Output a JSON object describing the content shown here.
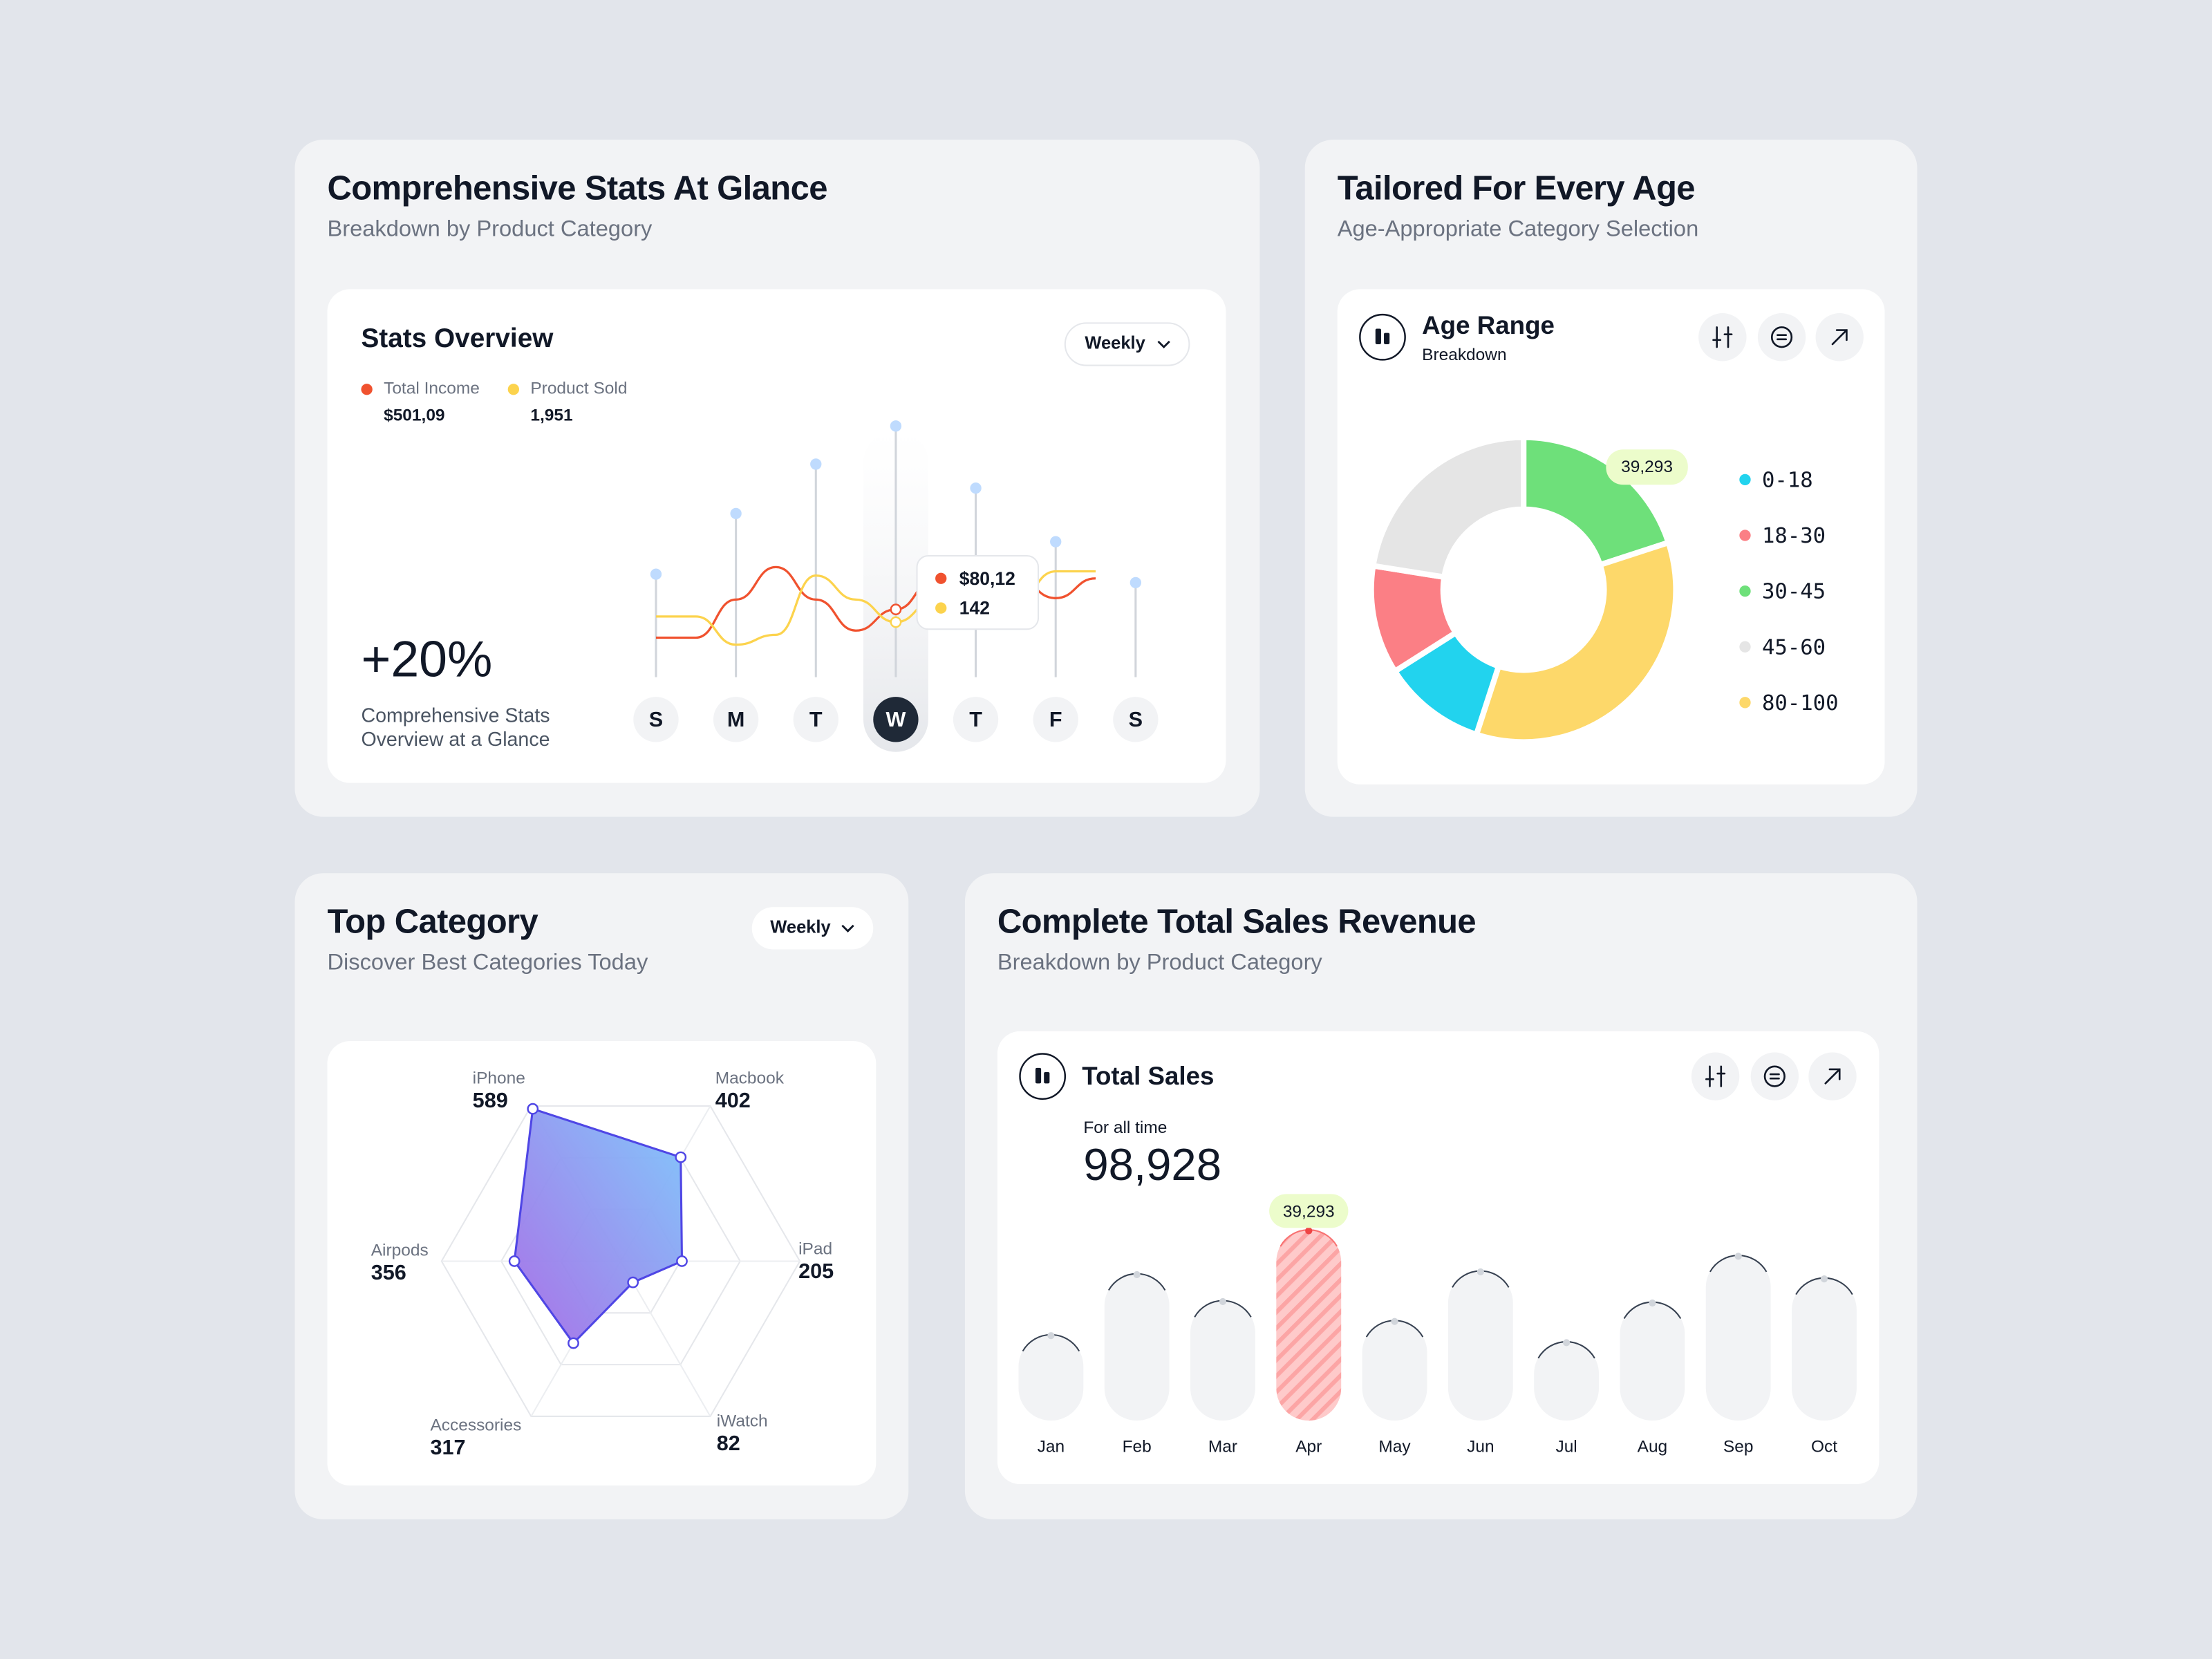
{
  "stats_card": {
    "title": "Comprehensive Stats At Glance",
    "subtitle": "Breakdown by Product Category",
    "chart_title": "Stats Overview",
    "dropdown": "Weekly",
    "change": "+20%",
    "caption_lines": [
      "Comprehensive Stats",
      "Overview at a Glance"
    ],
    "chart_data": {
      "type": "line",
      "categories": [
        "S",
        "M",
        "T",
        "W",
        "T",
        "F",
        "S"
      ],
      "highlight": 3,
      "bars": {
        "color": "#bfdbfe",
        "values": [
          73,
          116,
          151,
          178,
          134,
          96,
          67
        ]
      },
      "x": [
        0,
        0.5,
        1,
        1.5,
        2,
        2.5,
        3,
        3.5,
        4,
        4.5,
        5,
        5.5
      ],
      "xlim": [
        0,
        6
      ],
      "ylim": [
        0,
        200
      ],
      "series": [
        {
          "name": "Total Income",
          "summary": "$501,09",
          "color": "#f0522f",
          "values": [
            28,
            28,
            55,
            78,
            55,
            33,
            48,
            70,
            72,
            70,
            56,
            70
          ]
        },
        {
          "name": "Product Sold",
          "summary": "1,951",
          "color": "#fcd34d",
          "values": [
            43,
            43,
            23,
            30,
            72,
            55,
            39,
            55,
            55,
            54,
            75,
            75
          ]
        }
      ],
      "tooltip": [
        "$80,12",
        "142"
      ]
    }
  },
  "age_card": {
    "title": "Tailored For Every Age",
    "subtitle": "Age-Appropriate Category Selection",
    "chart_title": "Age Range",
    "chart_subtitle": "Breakdown",
    "chart_data": {
      "type": "donut",
      "categories": [
        "0-18",
        "18-30",
        "30-45",
        "45-60",
        "80-100"
      ],
      "values": [
        21600,
        22600,
        39293,
        44200,
        68800
      ],
      "value_labels": [
        null,
        null,
        "39,293",
        null,
        null
      ],
      "colors": [
        "#22d3ee",
        "#fb7f85",
        "#6ee07a",
        "#e5e5e5",
        "#fdd86a"
      ]
    }
  },
  "category_card": {
    "title": "Top Category",
    "subtitle": "Discover Best Categories Today",
    "dropdown": "Weekly",
    "chart_data": {
      "type": "radar",
      "categories": [
        "iPhone",
        "Macbook",
        "iPad",
        "iWatch",
        "Accessories",
        "Airpods"
      ],
      "values": [
        589,
        402,
        205,
        82,
        317,
        356
      ],
      "ylim": [
        0,
        600
      ],
      "color": "#4f46e5"
    }
  },
  "sales_card": {
    "title": "Complete Total Sales Revenue",
    "subtitle": "Breakdown by Product Category",
    "chart_title": "Total Sales",
    "caption": "For all time",
    "total": "98,928",
    "chart_data": {
      "type": "bar",
      "categories": [
        "Jan",
        "Feb",
        "Mar",
        "Apr",
        "May",
        "Jun",
        "Jul",
        "Aug",
        "Sep",
        "Oct"
      ],
      "values": [
        17750,
        30270,
        24740,
        39293,
        20660,
        30850,
        16300,
        24450,
        34050,
        29400
      ],
      "value_labels": [
        null,
        null,
        null,
        "39,293",
        null,
        null,
        null,
        null,
        null,
        null
      ],
      "highlight": 3,
      "ylim": [
        0,
        40000
      ],
      "color": "#f2f3f5"
    }
  }
}
